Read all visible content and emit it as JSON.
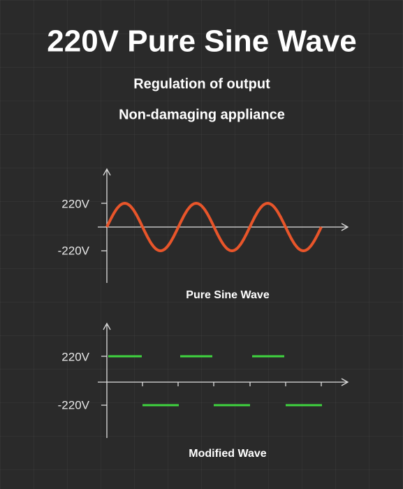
{
  "header": {
    "title": "220V Pure Sine Wave",
    "subtitles": [
      "Regulation of output",
      "Non-damaging appliance"
    ]
  },
  "diagrams": [
    {
      "y_labels": [
        "220V",
        "-220V"
      ],
      "caption": "Pure Sine Wave"
    },
    {
      "y_labels": [
        "220V",
        "-220V"
      ],
      "caption": "Modified Wave"
    }
  ]
}
